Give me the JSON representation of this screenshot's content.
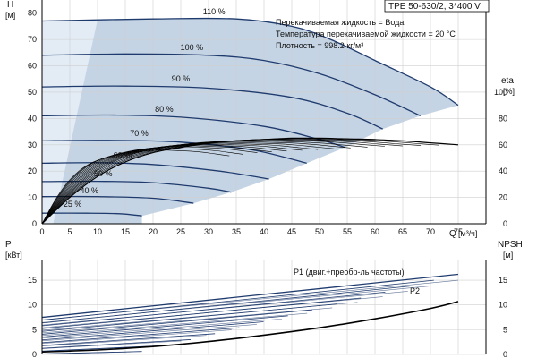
{
  "pump_model": "TPE 50-630/2, 3*400 V",
  "info_lines": [
    "Перекачиваемая жидкость = Вода",
    "Температура перекачиваемой жидкости = 20 °C",
    "Плотность = 998.2 кг/м³"
  ],
  "colors": {
    "curve": "#1f3b6e",
    "region_fill": "#c5d4e4",
    "region_light": "#e3ecf5",
    "grid": "#cfcfcf",
    "eta": "#000000",
    "npsh": "#000000"
  },
  "chart_data": [
    {
      "type": "line",
      "name": "head",
      "ylabel": "H",
      "yunit": "[м]",
      "xlabel": "Q",
      "xunit": "[м³/ч]",
      "xlim": [
        0,
        80
      ],
      "xticks": [
        0,
        5,
        10,
        15,
        20,
        25,
        30,
        35,
        40,
        45,
        50,
        55,
        60,
        65,
        70,
        75
      ],
      "ylim": [
        0,
        85
      ],
      "yticks": [
        0,
        10,
        20,
        30,
        40,
        50,
        60,
        70,
        80
      ],
      "right_label": "eta",
      "right_unit": "[%]",
      "right_lim": [
        0,
        170
      ],
      "right_ticks": [
        0,
        20,
        40,
        60,
        80,
        100
      ],
      "series": [
        {
          "name": "110 %",
          "x": [
            0,
            20,
            35,
            45,
            52,
            60,
            70,
            75
          ],
          "y": [
            77,
            77.8,
            77.8,
            75,
            70,
            62,
            52,
            45
          ]
        },
        {
          "name": "100 %",
          "x": [
            0,
            15,
            30,
            40,
            50,
            60,
            68.2
          ],
          "y": [
            64,
            64.5,
            64,
            62,
            57,
            49,
            41
          ]
        },
        {
          "name": "90 %",
          "x": [
            0,
            15,
            30,
            45,
            55,
            61.4
          ],
          "y": [
            52,
            52.3,
            51.5,
            48,
            42,
            36
          ]
        },
        {
          "name": "80 %",
          "x": [
            0,
            12,
            25,
            40,
            50,
            54.6
          ],
          "y": [
            41,
            41.3,
            40.5,
            37,
            32,
            29
          ]
        },
        {
          "name": "70 %",
          "x": [
            0,
            12,
            25,
            38,
            47.7
          ],
          "y": [
            31.5,
            31.7,
            31,
            28,
            23
          ]
        },
        {
          "name": "60 %",
          "x": [
            0,
            10,
            20,
            32,
            40.9
          ],
          "y": [
            23,
            23.2,
            22.5,
            20,
            17
          ]
        },
        {
          "name": "50 %",
          "x": [
            0,
            10,
            20,
            30,
            34.1
          ],
          "y": [
            16,
            16.1,
            15.6,
            13.5,
            12
          ]
        },
        {
          "name": "40 %",
          "x": [
            0,
            10,
            20,
            27.3
          ],
          "y": [
            10.3,
            10.3,
            9.7,
            7.8
          ]
        },
        {
          "name": "25 %",
          "x": [
            0,
            8,
            14,
            18
          ],
          "y": [
            4,
            4,
            3.8,
            3.0
          ]
        }
      ],
      "curve_labels": [
        {
          "text": "110 %",
          "x": 31,
          "y": 79.5
        },
        {
          "text": "100 %",
          "x": 27,
          "y": 66
        },
        {
          "text": "90 %",
          "x": 25,
          "y": 54
        },
        {
          "text": "80 %",
          "x": 22,
          "y": 42.5
        },
        {
          "text": "70 %",
          "x": 17.5,
          "y": 33.3
        },
        {
          "text": "60 %",
          "x": 14.5,
          "y": 25
        },
        {
          "text": "50 %",
          "x": 11,
          "y": 18
        },
        {
          "text": "40 %",
          "x": 8.5,
          "y": 11.5
        },
        {
          "text": "25 %",
          "x": 5.5,
          "y": 6.5
        }
      ],
      "eta_series": {
        "x": [
          0,
          5,
          10,
          15,
          20,
          25,
          30,
          35,
          40,
          45,
          50,
          55,
          60,
          65,
          70,
          75
        ],
        "y": [
          0,
          20,
          36,
          47,
          54,
          58,
          61,
          63,
          64,
          65,
          65,
          64.5,
          64,
          63,
          61.5,
          60
        ]
      }
    },
    {
      "type": "line",
      "name": "power",
      "ylabel": "P",
      "yunit": "[кВт]",
      "xlim": [
        0,
        80
      ],
      "ylim": [
        0,
        19
      ],
      "yticks": [
        0,
        5,
        10,
        15
      ],
      "right_label": "NPSH",
      "right_unit": "[м]",
      "right_ticks": [
        0,
        5,
        10,
        15
      ],
      "series_labels": [
        "P1 (двиг.+преобр-ль частоты)",
        "P2"
      ],
      "p1_top": {
        "x": [
          0,
          75
        ],
        "y": [
          7.5,
          16.2
        ]
      },
      "p2_top": {
        "x": [
          0,
          75
        ],
        "y": [
          7.0,
          15.0
        ]
      },
      "npsh": {
        "x": [
          0,
          10,
          20,
          30,
          40,
          50,
          60,
          70,
          75
        ],
        "y": [
          0.5,
          0.9,
          1.6,
          2.6,
          3.9,
          5.4,
          7.2,
          9.3,
          10.7
        ]
      }
    }
  ]
}
